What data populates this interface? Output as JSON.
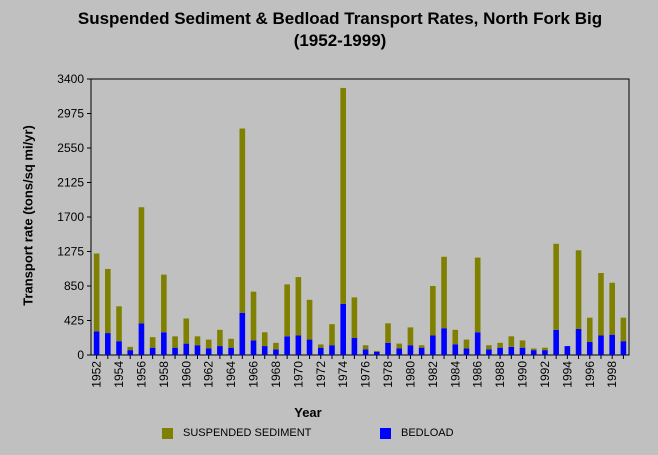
{
  "chart_data": {
    "type": "bar",
    "stacked": true,
    "title": "Suspended Sediment & Bedload Transport Rates, North Fork Big (1952-1999)",
    "xlabel": "Year",
    "ylabel": "Transport rate (tons/sq mi/yr)",
    "ylim": [
      0,
      3400
    ],
    "yticks": [
      0,
      425,
      850,
      1275,
      1700,
      2125,
      2550,
      2975,
      3400
    ],
    "xtick_labels": [
      "1952",
      "1954",
      "1956",
      "1958",
      "1960",
      "1962",
      "1964",
      "1966",
      "1968",
      "1970",
      "1972",
      "1974",
      "1976",
      "1978",
      "1980",
      "1982",
      "1984",
      "1986",
      "1988",
      "1990",
      "1992",
      "1994",
      "1996",
      "1998"
    ],
    "categories": [
      "1952",
      "1953",
      "1954",
      "1955",
      "1956",
      "1957",
      "1958",
      "1959",
      "1960",
      "1961",
      "1962",
      "1963",
      "1964",
      "1965",
      "1966",
      "1967",
      "1968",
      "1969",
      "1970",
      "1971",
      "1972",
      "1973",
      "1974",
      "1975",
      "1976",
      "1977",
      "1978",
      "1979",
      "1980",
      "1981",
      "1982",
      "1983",
      "1984",
      "1985",
      "1986",
      "1987",
      "1988",
      "1989",
      "1990",
      "1991",
      "1992",
      "1993",
      "1994",
      "1995",
      "1996",
      "1997",
      "1998",
      "1999"
    ],
    "series": [
      {
        "name": "BEDLOAD",
        "color": "#0000ff",
        "values": [
          290,
          270,
          170,
          60,
          390,
          90,
          280,
          90,
          140,
          120,
          80,
          110,
          90,
          520,
          180,
          110,
          70,
          230,
          240,
          190,
          90,
          120,
          630,
          210,
          70,
          40,
          150,
          80,
          120,
          90,
          240,
          330,
          130,
          80,
          280,
          70,
          90,
          100,
          90,
          60,
          60,
          310,
          110,
          320,
          160,
          240,
          250,
          170
        ]
      },
      {
        "name": "SUSPENDED SEDIMENT",
        "color": "#808000",
        "values": [
          960,
          790,
          430,
          40,
          1430,
          130,
          710,
          140,
          310,
          110,
          110,
          200,
          110,
          2270,
          600,
          170,
          80,
          640,
          720,
          490,
          40,
          260,
          2660,
          500,
          50,
          10,
          240,
          60,
          220,
          30,
          610,
          880,
          180,
          110,
          920,
          50,
          60,
          130,
          90,
          20,
          30,
          1060,
          0,
          970,
          300,
          770,
          640,
          290
        ]
      }
    ]
  },
  "legend": [
    {
      "label": "SUSPENDED SEDIMENT",
      "color": "#808000"
    },
    {
      "label": "BEDLOAD",
      "color": "#0000ff"
    }
  ]
}
